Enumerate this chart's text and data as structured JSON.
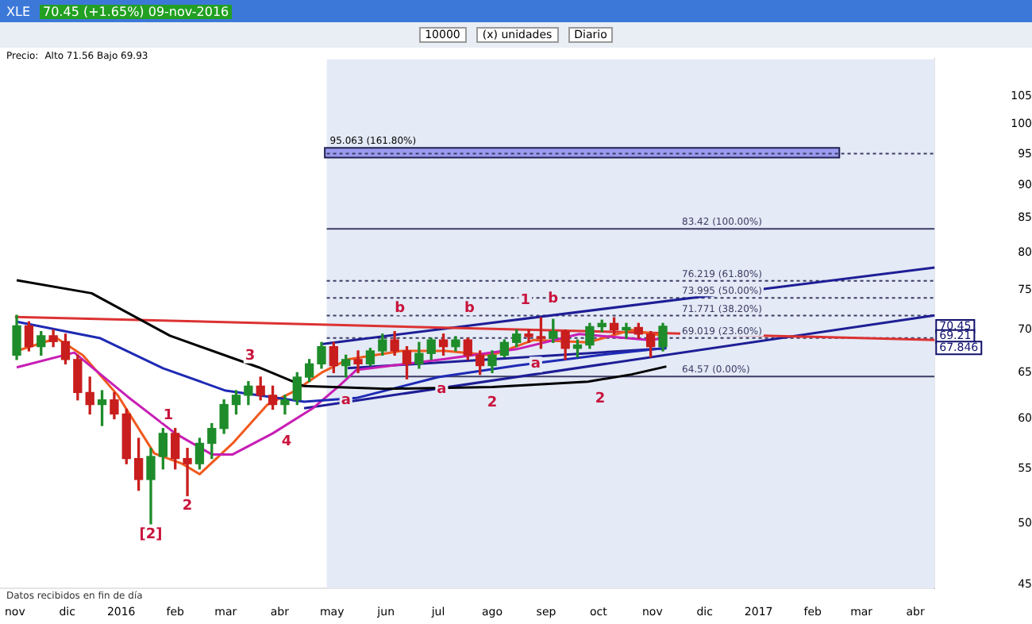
{
  "chart_data": {
    "type": "candlestick",
    "title": "XLE",
    "subtitle": "70.45 (+1.65%) 09-nov-2016",
    "x": [
      "2015-11-02",
      "2015-11-09",
      "2015-11-16",
      "2015-11-23",
      "2015-11-30",
      "2015-12-07",
      "2015-12-14",
      "2015-12-21",
      "2015-12-28",
      "2016-01-04",
      "2016-01-11",
      "2016-01-18",
      "2016-01-25",
      "2016-02-01",
      "2016-02-08",
      "2016-02-15",
      "2016-02-22",
      "2016-02-29",
      "2016-03-07",
      "2016-03-14",
      "2016-03-21",
      "2016-03-28",
      "2016-04-04",
      "2016-04-11",
      "2016-04-18",
      "2016-04-25",
      "2016-05-02",
      "2016-05-09",
      "2016-05-16",
      "2016-05-23",
      "2016-05-30",
      "2016-06-06",
      "2016-06-13",
      "2016-06-20",
      "2016-06-27",
      "2016-07-04",
      "2016-07-11",
      "2016-07-18",
      "2016-07-25",
      "2016-08-01",
      "2016-08-08",
      "2016-08-15",
      "2016-08-22",
      "2016-08-29",
      "2016-09-05",
      "2016-09-12",
      "2016-09-19",
      "2016-09-26",
      "2016-10-03",
      "2016-10-10",
      "2016-10-17",
      "2016-10-24",
      "2016-10-31",
      "2016-11-07"
    ],
    "ohlc": [
      [
        67,
        71.8,
        66.5,
        70.5
      ],
      [
        70.5,
        71,
        67.5,
        68
      ],
      [
        68,
        69.8,
        67,
        69.3
      ],
      [
        69.3,
        70,
        68,
        68.6
      ],
      [
        68.6,
        69.5,
        66,
        66.5
      ],
      [
        66.5,
        67,
        62,
        62.8
      ],
      [
        62.8,
        64.5,
        60.5,
        61.5
      ],
      [
        61.5,
        63,
        59.3,
        62
      ],
      [
        62,
        62.8,
        60,
        60.5
      ],
      [
        60.5,
        61,
        55.5,
        56
      ],
      [
        56,
        58,
        53,
        54
      ],
      [
        54,
        57,
        50,
        56.2
      ],
      [
        56.2,
        59,
        55,
        58.5
      ],
      [
        58.5,
        59,
        55,
        56
      ],
      [
        56,
        57,
        52.5,
        55.5
      ],
      [
        55.5,
        58,
        55,
        57.5
      ],
      [
        57.5,
        59.5,
        56,
        59
      ],
      [
        59,
        62,
        58.5,
        61.5
      ],
      [
        61.5,
        63,
        60.5,
        62.5
      ],
      [
        62.5,
        64,
        61.5,
        63.5
      ],
      [
        63.5,
        64.5,
        62,
        62.5
      ],
      [
        62.5,
        63.5,
        61,
        61.5
      ],
      [
        61.5,
        62.5,
        60.5,
        62
      ],
      [
        62,
        65,
        61.5,
        64.5
      ],
      [
        64.5,
        66.5,
        64,
        66
      ],
      [
        66,
        68.5,
        65.5,
        68
      ],
      [
        68,
        68.5,
        65,
        65.8
      ],
      [
        65.8,
        67,
        64.5,
        66.5
      ],
      [
        66.5,
        67.5,
        65,
        66
      ],
      [
        66,
        67.8,
        65.8,
        67.5
      ],
      [
        67.5,
        69.5,
        67,
        68.8
      ],
      [
        68.8,
        69.8,
        67,
        67.5
      ],
      [
        67.5,
        68,
        64.3,
        66
      ],
      [
        66,
        68.5,
        65.5,
        67.2
      ],
      [
        67.2,
        69,
        66.5,
        68.8
      ],
      [
        68.8,
        69.5,
        67,
        68
      ],
      [
        68,
        69.2,
        67.5,
        68.8
      ],
      [
        68.8,
        69,
        66.5,
        67
      ],
      [
        67,
        67.5,
        64.8,
        65.8
      ],
      [
        65.8,
        67.5,
        65,
        67
      ],
      [
        67,
        68.8,
        66.8,
        68.5
      ],
      [
        68.5,
        70,
        68,
        69.5
      ],
      [
        69.5,
        70,
        68.5,
        69.2
      ],
      [
        69.2,
        71.5,
        67.8,
        69
      ],
      [
        69,
        71.3,
        68.5,
        69.8
      ],
      [
        69.8,
        70,
        66.5,
        67.8
      ],
      [
        67.8,
        68.8,
        66.8,
        68.2
      ],
      [
        68.2,
        70.8,
        67.8,
        70.4
      ],
      [
        70.4,
        71.2,
        69.8,
        70.8
      ],
      [
        70.8,
        71.5,
        69.5,
        70
      ],
      [
        70,
        70.8,
        69,
        70.3
      ],
      [
        70.3,
        70.8,
        69,
        69.5
      ],
      [
        69.5,
        69.8,
        66.8,
        68
      ],
      [
        68,
        70.8,
        67.5,
        70.45
      ]
    ],
    "colors": [
      "#1e8c2a",
      "#c81e1e",
      "#1e8c2a",
      "#c81e1e",
      "#c81e1e",
      "#c81e1e",
      "#c81e1e",
      "#1e8c2a",
      "#c81e1e",
      "#c81e1e",
      "#c81e1e",
      "#1e8c2a",
      "#1e8c2a",
      "#c81e1e",
      "#c81e1e",
      "#1e8c2a",
      "#1e8c2a",
      "#1e8c2a",
      "#1e8c2a",
      "#1e8c2a",
      "#c81e1e",
      "#c81e1e",
      "#1e8c2a",
      "#1e8c2a",
      "#1e8c2a",
      "#1e8c2a",
      "#c81e1e",
      "#1e8c2a",
      "#c81e1e",
      "#1e8c2a",
      "#1e8c2a",
      "#c81e1e",
      "#c81e1e",
      "#1e8c2a",
      "#1e8c2a",
      "#c81e1e",
      "#1e8c2a",
      "#c81e1e",
      "#c81e1e",
      "#1e8c2a",
      "#1e8c2a",
      "#1e8c2a",
      "#c81e1e",
      "#c81e1e",
      "#1e8c2a",
      "#c81e1e",
      "#1e8c2a",
      "#1e8c2a",
      "#1e8c2a",
      "#c81e1e",
      "#1e8c2a",
      "#c81e1e",
      "#c81e1e",
      "#1e8c2a"
    ],
    "series": [
      {
        "type": "line",
        "color": "#000000",
        "x": [
          "2015-11-02",
          "2015-12-15",
          "2016-01-29",
          "2016-03-20",
          "2016-04-15",
          "2016-06-01",
          "2016-08-01",
          "2016-09-25",
          "2016-10-20",
          "2016-11-09"
        ],
        "values": [
          76.3,
          74.6,
          69.3,
          65.6,
          63.5,
          63.2,
          63.4,
          64,
          64.8,
          65.7
        ]
      },
      {
        "type": "line",
        "color": "#1e2ab4",
        "x": [
          "2015-11-02",
          "2015-12-20",
          "2016-01-25",
          "2016-03-01",
          "2016-04-15",
          "2016-05-15",
          "2016-07-01",
          "2016-08-15",
          "2016-10-01",
          "2016-11-09"
        ],
        "values": [
          71,
          69,
          65.5,
          63,
          61.8,
          62.2,
          64.5,
          65.8,
          67,
          67.85
        ]
      },
      {
        "type": "line",
        "color": "#c81eb4",
        "x": [
          "2015-11-02",
          "2015-12-05",
          "2016-01-05",
          "2016-02-01",
          "2016-02-22",
          "2016-03-05",
          "2016-03-28",
          "2016-04-20",
          "2016-05-05",
          "2016-05-15",
          "2016-07-03",
          "2016-08-15",
          "2016-09-20",
          "2016-10-30",
          "2016-11-09"
        ],
        "values": [
          65.6,
          67.3,
          62.3,
          58.5,
          56.4,
          56.4,
          58.5,
          61.1,
          63.5,
          65.3,
          66.5,
          67.7,
          69.5,
          68.8,
          69
        ]
      },
      {
        "type": "line",
        "color": "#f05a1e",
        "x": [
          "2015-11-02",
          "2015-11-25",
          "2015-12-10",
          "2015-12-30",
          "2016-01-20",
          "2016-02-05",
          "2016-02-15",
          "2016-03-05",
          "2016-03-25",
          "2016-04-10",
          "2016-04-25",
          "2016-05-10",
          "2016-06-10",
          "2016-07-05",
          "2016-08-01",
          "2016-08-25",
          "2016-09-25",
          "2016-10-20",
          "2016-11-09"
        ],
        "values": [
          67.5,
          69,
          67,
          62.5,
          56.5,
          55.5,
          54.5,
          57.5,
          61.5,
          63,
          65,
          66.5,
          67.5,
          67.5,
          67,
          68.8,
          68.5,
          70,
          69.2
        ]
      },
      {
        "type": "line",
        "color": "#dc3232",
        "x": [
          "2015-11-01",
          "2017-04-12"
        ],
        "values": [
          71.6,
          68.8
        ]
      },
      {
        "type": "line",
        "color": "#1e1e96",
        "x": [
          "2016-04-25",
          "2017-04-12"
        ],
        "values": [
          68.3,
          78
        ]
      },
      {
        "type": "line",
        "color": "#1e1e96",
        "x": [
          "2016-04-15",
          "2017-04-12"
        ],
        "values": [
          61.1,
          71.8
        ]
      },
      {
        "type": "line",
        "color": "#1e1e96",
        "x": [
          "2016-05-10",
          "2016-11-09"
        ],
        "values": [
          65.5,
          67.8
        ]
      }
    ],
    "log": true,
    "ylim": [
      44.7,
      112
    ],
    "yticks": [
      45,
      50,
      55,
      60,
      65,
      70,
      75,
      80,
      85,
      90,
      95,
      100,
      105
    ],
    "xlim": [
      "2015-10-24",
      "2017-04-12"
    ],
    "xticks": [
      {
        "value": "2015-11-01",
        "label": "nov"
      },
      {
        "value": "2015-12-01",
        "label": "dic"
      },
      {
        "value": "2016-01-01",
        "label": "2016"
      },
      {
        "value": "2016-02-01",
        "label": "feb"
      },
      {
        "value": "2016-03-01",
        "label": "mar"
      },
      {
        "value": "2016-04-01",
        "label": "abr"
      },
      {
        "value": "2016-05-01",
        "label": "may"
      },
      {
        "value": "2016-06-01",
        "label": "jun"
      },
      {
        "value": "2016-07-01",
        "label": "jul"
      },
      {
        "value": "2016-08-01",
        "label": "ago"
      },
      {
        "value": "2016-09-01",
        "label": "sep"
      },
      {
        "value": "2016-10-01",
        "label": "oct"
      },
      {
        "value": "2016-11-01",
        "label": "nov"
      },
      {
        "value": "2016-12-01",
        "label": "dic"
      },
      {
        "value": "2017-01-01",
        "label": "2017"
      },
      {
        "value": "2017-02-01",
        "label": "feb"
      },
      {
        "value": "2017-03-01",
        "label": "mar"
      },
      {
        "value": "2017-04-01",
        "label": "abr"
      }
    ],
    "ref_lines": [
      {
        "axis": "y",
        "value": 95.063,
        "label": "95.063 (161.80%)",
        "color": "#3c3c64",
        "line_style": "dotted"
      },
      {
        "axis": "y",
        "value": 83.42,
        "label": "83.42 (100.00%)",
        "color": "#3c3c64",
        "line_style": "solid"
      },
      {
        "axis": "y",
        "value": 76.219,
        "label": "76.219 (61.80%)",
        "color": "#3c3c64",
        "line_style": "dotted"
      },
      {
        "axis": "y",
        "value": 73.995,
        "label": "73.995 (50.00%)",
        "color": "#3c3c64",
        "line_style": "dotted"
      },
      {
        "axis": "y",
        "value": 71.771,
        "label": "71.771 (38.20%)",
        "color": "#3c3c64",
        "line_style": "dotted"
      },
      {
        "axis": "y",
        "value": 69.019,
        "label": "69.019 (23.60%)",
        "color": "#3c3c64",
        "line_style": "dotted"
      },
      {
        "axis": "y",
        "value": 64.57,
        "label": "64.57 (0.00%)",
        "color": "#3c3c64",
        "line_style": "solid"
      }
    ],
    "bands": [
      {
        "axis": "x",
        "from": "2016-04-28",
        "to": "2017-04-12",
        "color": "#e4eaf6"
      },
      {
        "axis": "y",
        "from": 94.4,
        "to": 96,
        "color": "#9a9af0"
      }
    ],
    "annotations": [
      "10000",
      "(x) unidades",
      "Diario",
      "Precio:",
      "Alto 71.56 Bajo 69.93",
      "Datos recibidos en fin de día",
      {
        "text": "[2]",
        "x": "2016-01-18",
        "y": 50
      },
      {
        "text": "1",
        "x": "2016-01-28",
        "y": 59.3
      },
      {
        "text": "2",
        "x": "2016-02-08",
        "y": 52.5
      },
      {
        "text": "3",
        "x": "2016-03-15",
        "y": 65.7
      },
      {
        "text": "4",
        "x": "2016-04-05",
        "y": 58.7
      },
      {
        "text": "a",
        "x": "2016-05-09",
        "y": 63.1
      },
      {
        "text": "b",
        "x": "2016-06-09",
        "y": 71.4
      },
      {
        "text": "a",
        "x": "2016-07-03",
        "y": 64.3
      },
      {
        "text": "b",
        "x": "2016-07-19",
        "y": 71.4
      },
      {
        "text": "2",
        "x": "2016-08-01",
        "y": 62.8
      },
      {
        "text": "1",
        "x": "2016-08-20",
        "y": 72.4
      },
      {
        "text": "a",
        "x": "2016-08-26",
        "y": 67.2
      },
      {
        "text": "b",
        "x": "2016-09-05",
        "y": 72.6
      },
      {
        "text": "2",
        "x": "2016-10-02",
        "y": 63.2
      },
      {
        "text": "70.45",
        "x": "2017-04-12",
        "y": 70.45
      },
      {
        "text": "69.21",
        "x": "2017-04-12",
        "y": 69.21
      },
      {
        "text": "67.846",
        "x": "2017-04-12",
        "y": 67.846
      }
    ],
    "grid": false,
    "legend": false
  }
}
